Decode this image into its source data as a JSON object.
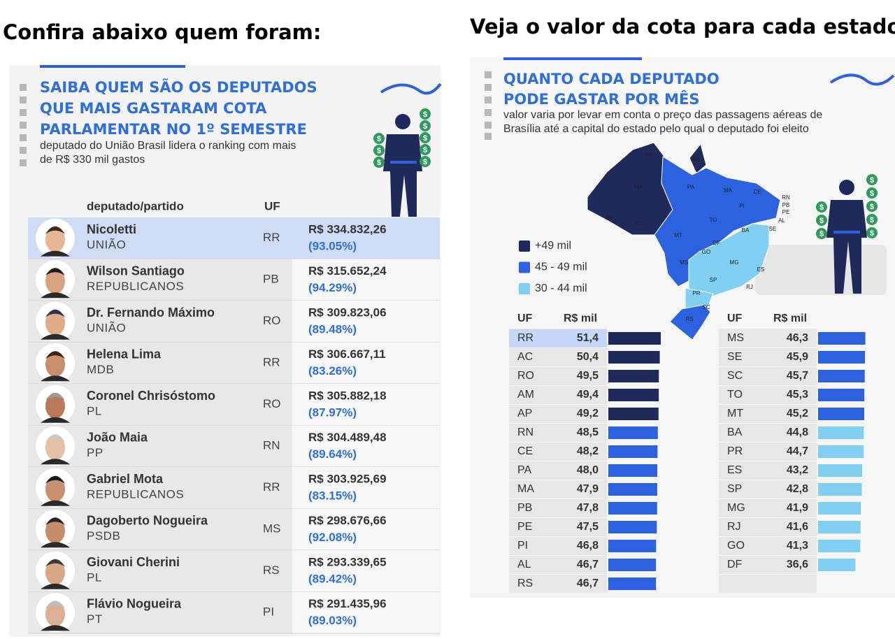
{
  "icon_symbol": "$",
  "left_panel": {
    "heading": "Confira abaixo quem foram:",
    "title_lines": [
      "SAIBA QUEM SÃO OS DEPUTADOS",
      "QUE MAIS GASTARAM COTA",
      "PARLAMENTAR NO 1º SEMESTRE"
    ],
    "subtitle_lines": [
      "deputado do União Brasil lidera o ranking com mais",
      "de R$ 330 mil gastos"
    ],
    "columns": {
      "name": "deputado/partido",
      "uf": "UF"
    },
    "rows": [
      {
        "name": "Nicoletti",
        "party": "UNIÃO",
        "uf": "RR",
        "amount": "R$ 334.832,26",
        "percent": "(93.05%)"
      },
      {
        "name": "Wilson Santiago",
        "party": "REPUBLICANOS",
        "uf": "PB",
        "amount": "R$ 315.652,24",
        "percent": "(94.29%)"
      },
      {
        "name": "Dr. Fernando Máximo",
        "party": "UNIÃO",
        "uf": "RO",
        "amount": "R$ 309.823,06",
        "percent": "(89.48%)"
      },
      {
        "name": "Helena Lima",
        "party": "MDB",
        "uf": "RR",
        "amount": "R$ 306.667,11",
        "percent": "(83.26%)"
      },
      {
        "name": "Coronel Chrisóstomo",
        "party": "PL",
        "uf": "RO",
        "amount": "R$ 305.882,18",
        "percent": "(87.97%)"
      },
      {
        "name": "João Maia",
        "party": "PP",
        "uf": "RN",
        "amount": "R$ 304.489,48",
        "percent": "(89.64%)"
      },
      {
        "name": "Gabriel Mota",
        "party": "REPUBLICANOS",
        "uf": "RR",
        "amount": "R$ 303.925,69",
        "percent": "(83.15%)"
      },
      {
        "name": "Dagoberto Nogueira",
        "party": "PSDB",
        "uf": "MS",
        "amount": "R$ 298.676,66",
        "percent": "(92.08%)"
      },
      {
        "name": "Giovani Cherini",
        "party": "PL",
        "uf": "RS",
        "amount": "R$ 293.339,65",
        "percent": "(89.42%)"
      },
      {
        "name": "Flávio Nogueira",
        "party": "PT",
        "uf": "PI",
        "amount": "R$ 291.435,96",
        "percent": "(89.03%)"
      }
    ]
  },
  "right_panel": {
    "heading": "Veja o valor da cota para cada estado:",
    "title_lines": [
      "QUANTO CADA DEPUTADO",
      "PODE GASTAR POR MÊS"
    ],
    "subtitle_lines": [
      "valor varia por levar em conta o preço das passagens aéreas de",
      "Brasília até a capital do estado pelo qual o deputado foi eleito"
    ],
    "legend": [
      {
        "label": "+49 mil",
        "color": "#1f2a5a"
      },
      {
        "label": "45 - 49 mil",
        "color": "#2c62e0"
      },
      {
        "label": "30 - 44 mil",
        "color": "#80d0f4"
      }
    ],
    "map_labels": [
      "RR",
      "AP",
      "AM",
      "PA",
      "MA",
      "CE",
      "RN",
      "PB",
      "PE",
      "AL",
      "SE",
      "PI",
      "AC",
      "RO",
      "TO",
      "BA",
      "MT",
      "DF",
      "GO",
      "MS",
      "MG",
      "ES",
      "SP",
      "RJ",
      "PR",
      "SC",
      "RS"
    ],
    "tables": [
      {
        "headers": {
          "uf": "UF",
          "value": "R$ mil"
        },
        "uf": [
          "RR",
          "AC",
          "RO",
          "AM",
          "AP",
          "RN",
          "CE",
          "PA",
          "MA",
          "PB",
          "PE",
          "PI",
          "AL",
          "RS"
        ],
        "values": [
          51.4,
          50.4,
          49.5,
          49.4,
          49.2,
          48.5,
          48.2,
          48.0,
          47.9,
          47.8,
          47.5,
          46.8,
          46.7,
          46.7
        ],
        "value_labels": [
          "51,4",
          "50,4",
          "49,5",
          "49,4",
          "49,2",
          "48,5",
          "48,2",
          "48,0",
          "47,9",
          "47,8",
          "47,5",
          "46,8",
          "46,7",
          "46,7"
        ],
        "colors": [
          "#1f2a5a",
          "#1f2a5a",
          "#1f2a5a",
          "#1f2a5a",
          "#1f2a5a",
          "#2c62e0",
          "#2c62e0",
          "#2c62e0",
          "#2c62e0",
          "#2c62e0",
          "#2c62e0",
          "#2c62e0",
          "#2c62e0",
          "#2c62e0"
        ]
      },
      {
        "headers": {
          "uf": "UF",
          "value": "R$ mil"
        },
        "uf": [
          "MS",
          "SE",
          "SC",
          "TO",
          "MT",
          "BA",
          "PR",
          "ES",
          "SP",
          "MG",
          "RJ",
          "GO",
          "DF"
        ],
        "values": [
          46.3,
          45.9,
          45.7,
          45.3,
          45.2,
          44.8,
          44.7,
          43.2,
          42.8,
          41.9,
          41.6,
          41.3,
          36.6
        ],
        "value_labels": [
          "46,3",
          "45,9",
          "45,7",
          "45,3",
          "45,2",
          "44,8",
          "44,7",
          "43,2",
          "42,8",
          "41,9",
          "41,6",
          "41,3",
          "36,6"
        ],
        "colors": [
          "#2c62e0",
          "#2c62e0",
          "#2c62e0",
          "#2c62e0",
          "#2c62e0",
          "#80d0f4",
          "#80d0f4",
          "#80d0f4",
          "#80d0f4",
          "#80d0f4",
          "#80d0f4",
          "#80d0f4",
          "#80d0f4"
        ]
      }
    ]
  }
}
